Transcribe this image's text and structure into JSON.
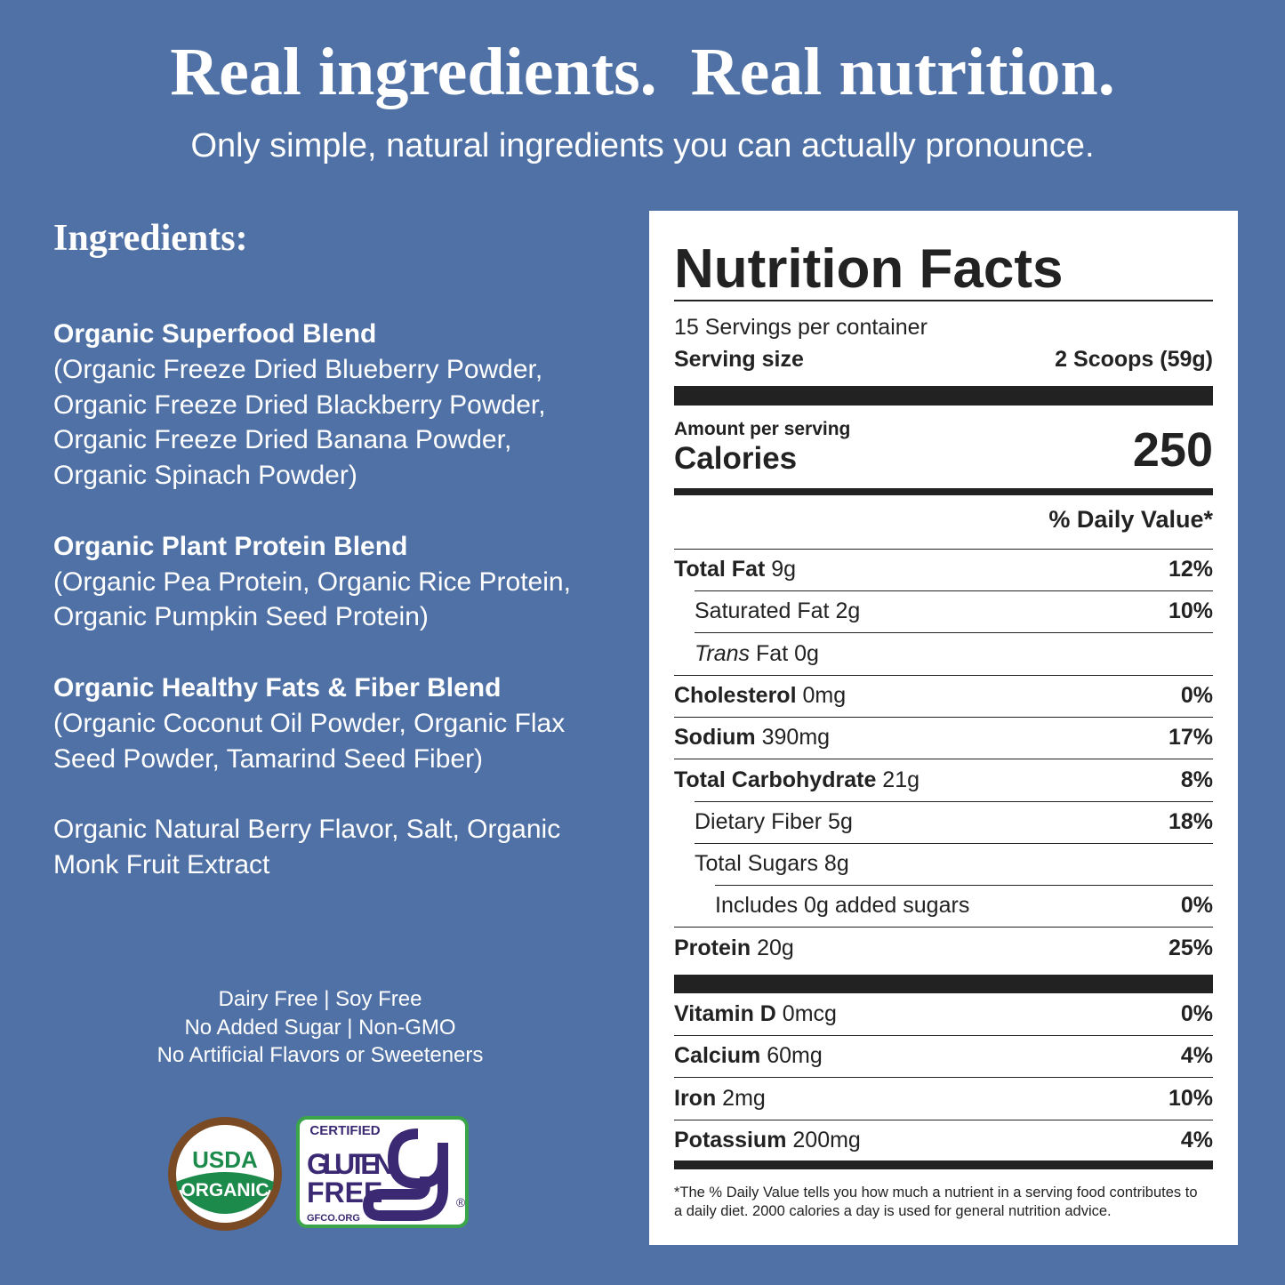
{
  "header": {
    "title": "Real ingredients.  Real nutrition.",
    "subtitle": "Only simple, natural ingredients you can actually pronounce."
  },
  "ingredients": {
    "heading": "Ingredients:",
    "blocks": [
      {
        "name": "Organic Superfood Blend",
        "detail": "(Organic Freeze Dried Blueberry Powder, Organic Freeze Dried Blackberry Powder, Organic Freeze Dried Banana Powder, Organic Spinach Powder)"
      },
      {
        "name": "Organic Plant Protein Blend",
        "detail": "(Organic Pea Protein, Organic Rice Protein, Organic Pumpkin Seed Protein)"
      },
      {
        "name": "Organic Healthy Fats & Fiber Blend",
        "detail": "(Organic Coconut Oil Powder, Organic Flax Seed Powder, Tamarind Seed Fiber)"
      },
      {
        "detail": "Organic Natural Berry Flavor, Salt, Organic Monk Fruit Extract"
      }
    ]
  },
  "claims": [
    "Dairy Free | Soy Free",
    "No Added Sugar | Non-GMO",
    "No Artificial Flavors or Sweeteners"
  ],
  "badges": {
    "usda": [
      "USDA",
      "ORGANIC"
    ],
    "gluten_free": {
      "top": "CERTIFIED",
      "lines": [
        "GLUTEN",
        "FREE"
      ],
      "site": "GFCO.ORG",
      "mark": "®"
    }
  },
  "nutrition": {
    "title": "Nutrition Facts",
    "servings": "15 Servings per container",
    "serving_size_label": "Serving size",
    "serving_size": "2 Scoops (59g)",
    "amount_label": "Amount per serving",
    "calories_label": "Calories",
    "calories": 250,
    "dv_heading": "% Daily Value*",
    "rows": [
      {
        "name": "Total Fat",
        "amount": "9g",
        "dv": "12%",
        "bold": true
      },
      {
        "name": "Saturated Fat",
        "amount": "2g",
        "dv": "10%",
        "indent": 1
      },
      {
        "name_italic": "Trans",
        "name": "Fat",
        "amount": "0g",
        "indent": 1
      },
      {
        "name": "Cholesterol",
        "amount": "0mg",
        "dv": "0%",
        "bold": true
      },
      {
        "name": "Sodium",
        "amount": "390mg",
        "dv": "17%",
        "bold": true
      },
      {
        "name": "Total Carbohydrate",
        "amount": "21g",
        "dv": "8%",
        "bold": true
      },
      {
        "name": "Dietary Fiber",
        "amount": "5g",
        "dv": "18%",
        "indent": 1
      },
      {
        "name": "Total Sugars",
        "amount": "8g",
        "indent": 1
      },
      {
        "name": "Includes 0g added sugars",
        "dv": "0%",
        "indent": 2
      },
      {
        "name": "Protein",
        "amount": "20g",
        "dv": "25%",
        "bold": true
      }
    ],
    "minerals": [
      {
        "name": "Vitamin D",
        "amount": "0mcg",
        "dv": "0%",
        "bold": true
      },
      {
        "name": "Calcium",
        "amount": "60mg",
        "dv": "4%",
        "bold": true
      },
      {
        "name": "Iron",
        "amount": "2mg",
        "dv": "10%",
        "bold": true
      },
      {
        "name": "Potassium",
        "amount": "200mg",
        "dv": "4%",
        "bold": true
      }
    ],
    "footnote": "*The % Daily Value tells you how much a nutrient in a serving food contributes to a daily diet. 2000 calories a day is used for general nutrition advice."
  }
}
